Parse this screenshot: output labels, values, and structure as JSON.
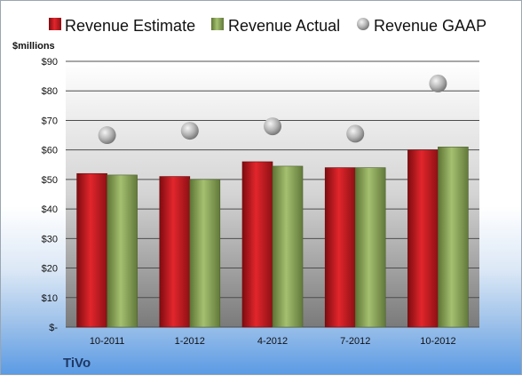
{
  "chart_data": {
    "type": "bar",
    "categories": [
      "10-2011",
      "1-2012",
      "4-2012",
      "7-2012",
      "10-2012"
    ],
    "series": [
      {
        "name": "Revenue Estimate",
        "kind": "bar",
        "color": "#c8161d",
        "values": [
          52,
          51,
          56,
          54,
          60
        ]
      },
      {
        "name": "Revenue Actual",
        "kind": "bar",
        "color": "#8da85a",
        "values": [
          51.5,
          50,
          54.5,
          54,
          61
        ]
      },
      {
        "name": "Revenue GAAP",
        "kind": "marker",
        "color": "#a6a6a6",
        "values": [
          65,
          66.5,
          68,
          65.5,
          82.5
        ]
      }
    ],
    "ylabel": "$millions",
    "ylim": [
      0,
      90
    ],
    "yticks": [
      0,
      10,
      20,
      30,
      40,
      50,
      60,
      70,
      80,
      90
    ],
    "ytick_labels": [
      "$-",
      "$10",
      "$20",
      "$30",
      "$40",
      "$50",
      "$60",
      "$70",
      "$80",
      "$90"
    ],
    "grid": true,
    "legend_position": "top",
    "company": "TiVo"
  }
}
